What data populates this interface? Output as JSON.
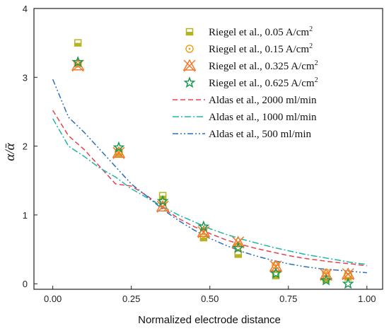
{
  "chart_data": {
    "type": "scatter",
    "xlabel": "Normalized electrode distance",
    "ylabel": "α/ᾱ",
    "xlim": [
      -0.06,
      1.05
    ],
    "ylim": [
      -0.08,
      4.0
    ],
    "xticks": [
      "0.00",
      "0.25",
      "0.50",
      "0.75",
      "1.00"
    ],
    "xtick_values": [
      0,
      0.25,
      0.5,
      0.75,
      1.0
    ],
    "yticks": [
      "0",
      "1",
      "2",
      "3",
      "4"
    ],
    "ytick_values": [
      0,
      1,
      2,
      3,
      4
    ],
    "grid": false,
    "legend_position": "top-right",
    "series": [
      {
        "name": "Riegel et al., 0.05 A/cm2",
        "kind": "points",
        "marker": "square-half",
        "color": "#b5b320",
        "x": [
          0.08,
          0.21,
          0.35,
          0.48,
          0.59,
          0.71,
          0.87,
          0.94
        ],
        "y": [
          3.5,
          1.9,
          1.28,
          0.67,
          0.43,
          0.12,
          0.07,
          0.1
        ]
      },
      {
        "name": "Riegel et al., 0.15 A/cm2",
        "kind": "points",
        "marker": "circle-dot",
        "color": "#f0a020",
        "x": [
          0.08,
          0.21,
          0.35,
          0.48,
          0.59,
          0.71,
          0.87,
          0.94
        ],
        "y": [
          3.2,
          1.92,
          1.18,
          0.73,
          0.55,
          0.27,
          0.16,
          0.14
        ]
      },
      {
        "name": "Riegel et al., 0.325 A/cm2",
        "kind": "points",
        "marker": "triangle-x",
        "color": "#f07a2a",
        "x": [
          0.08,
          0.21,
          0.35,
          0.48,
          0.59,
          0.71,
          0.87,
          0.94
        ],
        "y": [
          3.17,
          1.9,
          1.12,
          0.75,
          0.6,
          0.25,
          0.13,
          0.14
        ]
      },
      {
        "name": "Riegel et al., 0.625 A/cm2",
        "kind": "points",
        "marker": "star",
        "color": "#1a9850",
        "x": [
          0.08,
          0.21,
          0.35,
          0.48,
          0.59,
          0.71,
          0.87,
          0.94
        ],
        "y": [
          3.22,
          1.98,
          1.2,
          0.83,
          0.52,
          0.15,
          0.05,
          0.0
        ]
      },
      {
        "name": "Aldas et al., 2000 ml/min",
        "kind": "line",
        "dash": "7,4",
        "color": "#e8414b",
        "x": [
          0,
          0.05,
          0.1,
          0.15,
          0.2,
          0.25,
          0.3,
          0.35,
          0.4,
          0.45,
          0.5,
          0.55,
          0.6,
          0.65,
          0.7,
          0.75,
          0.8,
          0.85,
          0.9,
          0.95,
          1.0
        ],
        "y": [
          2.52,
          2.15,
          1.95,
          1.7,
          1.45,
          1.42,
          1.28,
          1.1,
          0.95,
          0.83,
          0.73,
          0.64,
          0.57,
          0.51,
          0.46,
          0.41,
          0.37,
          0.34,
          0.31,
          0.29,
          0.26
        ]
      },
      {
        "name": "Aldas et al., 1000 ml/min",
        "kind": "line",
        "dash": "9,3,2,3",
        "color": "#1fb5a6",
        "x": [
          0,
          0.05,
          0.1,
          0.15,
          0.2,
          0.25,
          0.3,
          0.35,
          0.4,
          0.45,
          0.5,
          0.55,
          0.6,
          0.65,
          0.7,
          0.75,
          0.8,
          0.85,
          0.9,
          0.95,
          1.0
        ],
        "y": [
          2.4,
          2.0,
          1.85,
          1.68,
          1.55,
          1.38,
          1.25,
          1.12,
          1.0,
          0.9,
          0.8,
          0.72,
          0.65,
          0.59,
          0.53,
          0.48,
          0.43,
          0.39,
          0.35,
          0.31,
          0.28
        ]
      },
      {
        "name": "Aldas et al., 500 ml/min",
        "kind": "line",
        "dash": "8,3,2,3,2,3",
        "color": "#2a6fc0",
        "x": [
          0,
          0.05,
          0.1,
          0.15,
          0.2,
          0.25,
          0.3,
          0.35,
          0.4,
          0.45,
          0.5,
          0.55,
          0.6,
          0.65,
          0.7,
          0.75,
          0.8,
          0.85,
          0.9,
          0.95,
          1.0
        ],
        "y": [
          2.97,
          2.42,
          2.2,
          1.95,
          1.7,
          1.45,
          1.27,
          1.08,
          0.92,
          0.78,
          0.66,
          0.56,
          0.47,
          0.4,
          0.34,
          0.29,
          0.25,
          0.22,
          0.2,
          0.18,
          0.16
        ]
      }
    ]
  }
}
